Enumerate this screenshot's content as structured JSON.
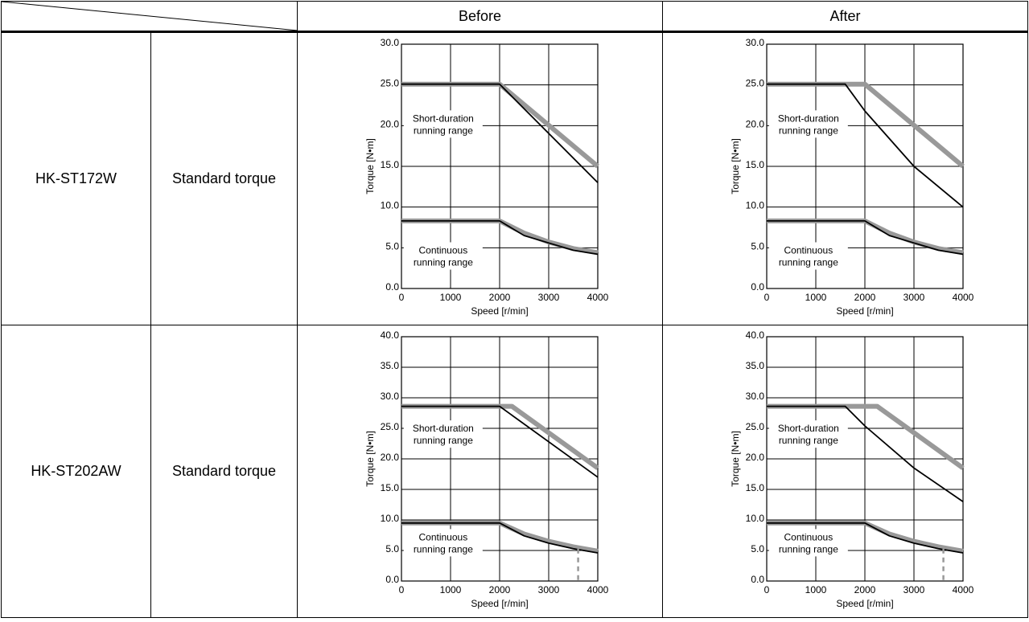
{
  "table": {
    "columns": [
      "Before",
      "After"
    ],
    "rows": [
      {
        "model": "HK-ST172W",
        "torque_type": "Standard torque"
      },
      {
        "model": "HK-ST202AW",
        "torque_type": "Standard torque"
      }
    ]
  },
  "colors": {
    "current": "#000000",
    "reference": "#999999"
  },
  "chart_data": [
    {
      "id": "hkst172w-before",
      "type": "line",
      "column": "Before",
      "model": "HK-ST172W",
      "xlabel": "Speed [r/min]",
      "ylabel": "Torque [N•m]",
      "xlim": [
        0,
        4000
      ],
      "ylim": [
        0,
        30
      ],
      "xticks": [
        "0",
        "1000",
        "2000",
        "3000",
        "4000"
      ],
      "yticks": [
        "0.0",
        "5.0",
        "10.0",
        "15.0",
        "20.0",
        "25.0",
        "30.0"
      ],
      "grid": true,
      "annotations": [
        {
          "lines": [
            "Short-duration",
            "running range"
          ],
          "x": 850,
          "y": 20
        },
        {
          "lines": [
            "Continuous",
            "running range"
          ],
          "x": 850,
          "y": 3.8
        }
      ],
      "series": [
        {
          "style": "gray-thick",
          "points": [
            [
              0,
              25.1
            ],
            [
              2000,
              25.1
            ],
            [
              4000,
              15
            ]
          ]
        },
        {
          "style": "black-thin",
          "points": [
            [
              0,
              25.1
            ],
            [
              2000,
              25.1
            ],
            [
              4000,
              13
            ]
          ]
        },
        {
          "style": "gray-thick",
          "points": [
            [
              0,
              8.3
            ],
            [
              2000,
              8.3
            ],
            [
              2500,
              6.8
            ],
            [
              3000,
              5.7
            ],
            [
              3500,
              4.9
            ],
            [
              4000,
              4.4
            ]
          ]
        },
        {
          "style": "black-thin",
          "points": [
            [
              0,
              8.3
            ],
            [
              2000,
              8.3
            ],
            [
              2500,
              6.5
            ],
            [
              3000,
              5.6
            ],
            [
              3500,
              4.7
            ],
            [
              4000,
              4.2
            ]
          ]
        }
      ]
    },
    {
      "id": "hkst172w-after",
      "type": "line",
      "column": "After",
      "model": "HK-ST172W",
      "xlabel": "Speed [r/min]",
      "ylabel": "Torque [N•m]",
      "xlim": [
        0,
        4000
      ],
      "ylim": [
        0,
        30
      ],
      "xticks": [
        "0",
        "1000",
        "2000",
        "3000",
        "4000"
      ],
      "yticks": [
        "0.0",
        "5.0",
        "10.0",
        "15.0",
        "20.0",
        "25.0",
        "30.0"
      ],
      "grid": true,
      "annotations": [
        {
          "lines": [
            "Short-duration",
            "running range"
          ],
          "x": 850,
          "y": 20
        },
        {
          "lines": [
            "Continuous",
            "running range"
          ],
          "x": 850,
          "y": 3.8
        }
      ],
      "series": [
        {
          "style": "gray-thick",
          "points": [
            [
              0,
              25.1
            ],
            [
              2000,
              25.1
            ],
            [
              4000,
              15
            ]
          ]
        },
        {
          "style": "black-thin",
          "points": [
            [
              0,
              25.1
            ],
            [
              1600,
              25.1
            ],
            [
              2000,
              21.8
            ],
            [
              3000,
              15
            ],
            [
              4000,
              10
            ]
          ]
        },
        {
          "style": "gray-thick",
          "points": [
            [
              0,
              8.3
            ],
            [
              2000,
              8.3
            ],
            [
              2500,
              6.8
            ],
            [
              3000,
              5.7
            ],
            [
              3500,
              4.9
            ],
            [
              4000,
              4.4
            ]
          ]
        },
        {
          "style": "black-thin",
          "points": [
            [
              0,
              8.3
            ],
            [
              2000,
              8.3
            ],
            [
              2500,
              6.5
            ],
            [
              3000,
              5.6
            ],
            [
              3500,
              4.7
            ],
            [
              4000,
              4.2
            ]
          ]
        }
      ]
    },
    {
      "id": "hkst202aw-before",
      "type": "line",
      "column": "Before",
      "model": "HK-ST202AW",
      "xlabel": "Speed [r/min]",
      "ylabel": "Torque [N•m]",
      "xlim": [
        0,
        4000
      ],
      "ylim": [
        0,
        40
      ],
      "xticks": [
        "0",
        "1000",
        "2000",
        "3000",
        "4000"
      ],
      "yticks": [
        "0.0",
        "5.0",
        "10.0",
        "15.0",
        "20.0",
        "25.0",
        "30.0",
        "35.0",
        "40.0"
      ],
      "grid": true,
      "annotations": [
        {
          "lines": [
            "Short-duration",
            "running range"
          ],
          "x": 850,
          "y": 23.8
        },
        {
          "lines": [
            "Continuous",
            "running range"
          ],
          "x": 850,
          "y": 6.0
        }
      ],
      "series": [
        {
          "style": "gray-thick",
          "points": [
            [
              0,
              28.6
            ],
            [
              2250,
              28.6
            ],
            [
              4000,
              18.5
            ]
          ]
        },
        {
          "style": "black-thin",
          "points": [
            [
              0,
              28.6
            ],
            [
              2000,
              28.6
            ],
            [
              4000,
              17
            ]
          ]
        },
        {
          "style": "gray-thick",
          "points": [
            [
              0,
              9.5
            ],
            [
              2000,
              9.5
            ],
            [
              2500,
              7.7
            ],
            [
              3000,
              6.5
            ],
            [
              3500,
              5.6
            ],
            [
              4000,
              4.9
            ]
          ]
        },
        {
          "style": "black-thin",
          "points": [
            [
              0,
              9.5
            ],
            [
              2000,
              9.5
            ],
            [
              2500,
              7.4
            ],
            [
              3000,
              6.2
            ],
            [
              3500,
              5.3
            ],
            [
              4000,
              4.6
            ]
          ]
        },
        {
          "style": "gray-dashed",
          "points": [
            [
              3600,
              5.3
            ],
            [
              3600,
              0
            ]
          ]
        }
      ]
    },
    {
      "id": "hkst202aw-after",
      "type": "line",
      "column": "After",
      "model": "HK-ST202AW",
      "xlabel": "Speed [r/min]",
      "ylabel": "Torque [N•m]",
      "xlim": [
        0,
        4000
      ],
      "ylim": [
        0,
        40
      ],
      "xticks": [
        "0",
        "1000",
        "2000",
        "3000",
        "4000"
      ],
      "yticks": [
        "0.0",
        "5.0",
        "10.0",
        "15.0",
        "20.0",
        "25.0",
        "30.0",
        "35.0",
        "40.0"
      ],
      "grid": true,
      "annotations": [
        {
          "lines": [
            "Short-duration",
            "running range"
          ],
          "x": 850,
          "y": 23.8
        },
        {
          "lines": [
            "Continuous",
            "running range"
          ],
          "x": 850,
          "y": 6.0
        }
      ],
      "series": [
        {
          "style": "gray-thick",
          "points": [
            [
              0,
              28.6
            ],
            [
              2250,
              28.6
            ],
            [
              4000,
              18.5
            ]
          ]
        },
        {
          "style": "black-thin",
          "points": [
            [
              0,
              28.6
            ],
            [
              1600,
              28.6
            ],
            [
              2000,
              25.4
            ],
            [
              3000,
              18.5
            ],
            [
              4000,
              13
            ]
          ]
        },
        {
          "style": "gray-thick",
          "points": [
            [
              0,
              9.5
            ],
            [
              2000,
              9.5
            ],
            [
              2500,
              7.7
            ],
            [
              3000,
              6.5
            ],
            [
              3500,
              5.6
            ],
            [
              4000,
              4.9
            ]
          ]
        },
        {
          "style": "black-thin",
          "points": [
            [
              0,
              9.5
            ],
            [
              2000,
              9.5
            ],
            [
              2500,
              7.4
            ],
            [
              3000,
              6.2
            ],
            [
              3500,
              5.3
            ],
            [
              4000,
              4.6
            ]
          ]
        },
        {
          "style": "gray-dashed",
          "points": [
            [
              3600,
              5.3
            ],
            [
              3600,
              0
            ]
          ]
        }
      ]
    }
  ]
}
